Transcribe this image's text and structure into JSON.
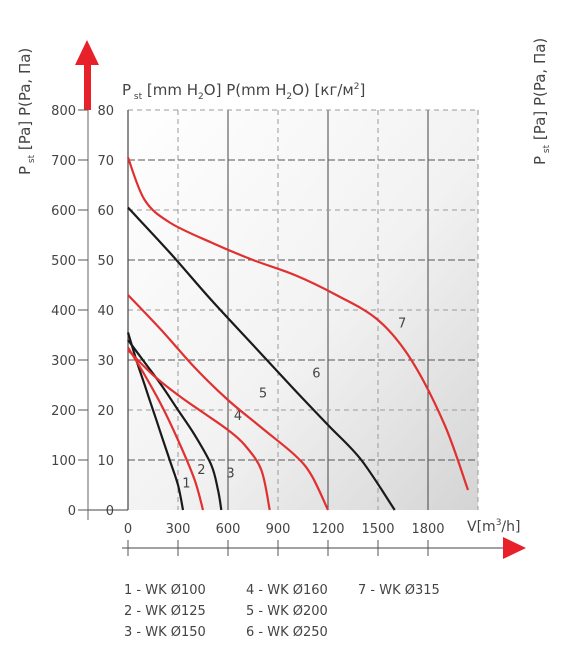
{
  "chart_data": {
    "type": "line",
    "left_axis_title": "P st [Pa] P(Pa, Па)",
    "right_axis_title": "P st [Pa] P(Pa, Па)",
    "top_axis_title": "P st [mm H2O] P(mm H2O) [кг/м2]",
    "x_axis_title": "V[m3/h]",
    "x_ticks": [
      "0",
      "300",
      "600",
      "900",
      "1200",
      "1500",
      "1800"
    ],
    "y_ticks_pa": [
      "0",
      "100",
      "200",
      "300",
      "400",
      "500",
      "600",
      "700",
      "800"
    ],
    "y_ticks_mm": [
      "0",
      "10",
      "20",
      "30",
      "40",
      "50",
      "60",
      "70",
      "80"
    ],
    "xlim": [
      0,
      2100
    ],
    "ylim": [
      0,
      800
    ],
    "grid": true,
    "series": [
      {
        "name": "1",
        "color": "#1a1a1a",
        "label_at": [
          350,
          45
        ],
        "points": [
          [
            0,
            355
          ],
          [
            50,
            300
          ],
          [
            100,
            250
          ],
          [
            150,
            200
          ],
          [
            200,
            150
          ],
          [
            250,
            100
          ],
          [
            300,
            50
          ],
          [
            330,
            0
          ]
        ]
      },
      {
        "name": "2",
        "color": "#e03030",
        "label_at": [
          440,
          72
        ],
        "points": [
          [
            0,
            325
          ],
          [
            100,
            270
          ],
          [
            200,
            210
          ],
          [
            300,
            140
          ],
          [
            400,
            60
          ],
          [
            450,
            0
          ]
        ]
      },
      {
        "name": "3",
        "color": "#1a1a1a",
        "label_at": [
          615,
          65
        ],
        "points": [
          [
            0,
            340
          ],
          [
            100,
            295
          ],
          [
            200,
            250
          ],
          [
            300,
            200
          ],
          [
            400,
            150
          ],
          [
            500,
            90
          ],
          [
            540,
            40
          ],
          [
            560,
            0
          ]
        ]
      },
      {
        "name": "4",
        "color": "#e03030",
        "label_at": [
          660,
          180
        ],
        "points": [
          [
            0,
            320
          ],
          [
            150,
            270
          ],
          [
            300,
            230
          ],
          [
            450,
            195
          ],
          [
            600,
            160
          ],
          [
            700,
            130
          ],
          [
            800,
            80
          ],
          [
            850,
            0
          ]
        ]
      },
      {
        "name": "5",
        "color": "#e03030",
        "label_at": [
          810,
          225
        ],
        "points": [
          [
            0,
            430
          ],
          [
            200,
            360
          ],
          [
            400,
            285
          ],
          [
            600,
            220
          ],
          [
            800,
            165
          ],
          [
            1000,
            110
          ],
          [
            1100,
            70
          ],
          [
            1200,
            0
          ]
        ]
      },
      {
        "name": "6",
        "color": "#1a1a1a",
        "label_at": [
          1130,
          265
        ],
        "points": [
          [
            0,
            605
          ],
          [
            250,
            515
          ],
          [
            500,
            420
          ],
          [
            750,
            330
          ],
          [
            1000,
            240
          ],
          [
            1200,
            170
          ],
          [
            1400,
            100
          ],
          [
            1600,
            0
          ]
        ]
      },
      {
        "name": "7",
        "color": "#e03030",
        "label_at": [
          1645,
          365
        ],
        "points": [
          [
            0,
            705
          ],
          [
            100,
            620
          ],
          [
            250,
            575
          ],
          [
            500,
            535
          ],
          [
            750,
            500
          ],
          [
            1000,
            470
          ],
          [
            1250,
            430
          ],
          [
            1500,
            380
          ],
          [
            1700,
            300
          ],
          [
            1900,
            170
          ],
          [
            2040,
            40
          ]
        ]
      }
    ]
  },
  "legend": [
    [
      "1 - WK Ø100",
      "2 - WK Ø125",
      "3 - WK Ø150"
    ],
    [
      "4 - WK Ø160",
      "5 - WK Ø200",
      "6 - WK Ø250"
    ],
    [
      "7 - WK Ø315"
    ]
  ],
  "colors": {
    "red": "#e03030",
    "black": "#1a1a1a",
    "grid_light": "#9a9a9a",
    "grid_dark": "#444444"
  }
}
